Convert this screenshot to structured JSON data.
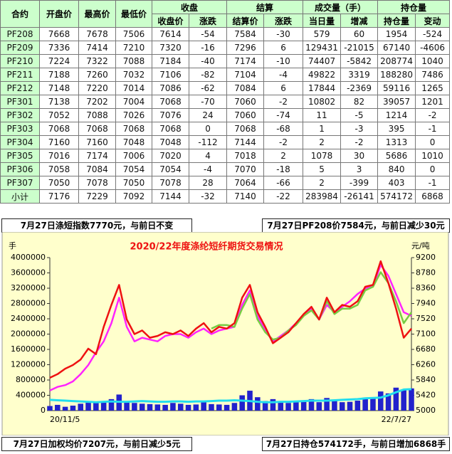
{
  "table": {
    "header": {
      "top": [
        "合约",
        "开盘价",
        "最高价",
        "最低价",
        "收盘",
        "结算",
        "成交量（手）",
        "持仓量"
      ],
      "sub": [
        "收盘价",
        "涨跌",
        "结算价",
        "涨跌",
        "当日量",
        "增减",
        "持仓量",
        "变动"
      ]
    },
    "rows": [
      [
        "PF208",
        7668,
        7678,
        7506,
        7614,
        -54,
        7584,
        -30,
        579,
        60,
        1954,
        -524
      ],
      [
        "PF209",
        7336,
        7414,
        7210,
        7320,
        -16,
        7296,
        6,
        129431,
        -21015,
        67140,
        -4606
      ],
      [
        "PF210",
        7224,
        7322,
        7088,
        7184,
        -40,
        7174,
        -10,
        74407,
        -5842,
        208774,
        1040
      ],
      [
        "PF211",
        7188,
        7260,
        7032,
        7106,
        -82,
        7104,
        -4,
        49822,
        3319,
        188280,
        7486
      ],
      [
        "PF212",
        7148,
        7220,
        7014,
        7086,
        -62,
        7084,
        6,
        17844,
        -2369,
        59116,
        1265
      ],
      [
        "PF301",
        7138,
        7202,
        7004,
        7068,
        -70,
        7060,
        -2,
        10802,
        82,
        39057,
        1201
      ],
      [
        "PF302",
        7052,
        7088,
        7026,
        7076,
        24,
        7060,
        -74,
        11,
        -5,
        1214,
        -2
      ],
      [
        "PF303",
        7068,
        7068,
        7068,
        7068,
        0,
        7068,
        -68,
        1,
        -3,
        395,
        -1
      ],
      [
        "PF304",
        7160,
        7160,
        7048,
        7048,
        -112,
        7144,
        -2,
        2,
        -2,
        1313,
        0
      ],
      [
        "PF305",
        7016,
        7174,
        7006,
        7020,
        4,
        7018,
        2,
        1078,
        30,
        5686,
        1010
      ],
      [
        "PF306",
        7058,
        7084,
        7054,
        7054,
        -4,
        7070,
        -18,
        5,
        3,
        840,
        0
      ],
      [
        "PF307",
        7050,
        7078,
        7050,
        7078,
        28,
        7064,
        -66,
        2,
        -399,
        403,
        -1
      ],
      [
        "小计",
        7176,
        7229,
        7092,
        7144,
        -32,
        7140,
        -22,
        283984,
        -26141,
        574172,
        6868
      ]
    ]
  },
  "notes": {
    "top_left": "7月27日涤短指数7770元，与前日不变",
    "top_right": "7月27日PF208价7584元，与前日减少30元",
    "bottom_left": "7月27日加权均价7207元，与前日减少5元",
    "bottom_right": "7月27日持仓574172手，与前日增加6868手"
  },
  "chart_data": {
    "type": "combo",
    "title": "2020/22年度涤纶短纤期货交易情况",
    "y_label": "手",
    "y2_label": "元/吨",
    "categories": [
      "20/11/5",
      null,
      null,
      null,
      null,
      null,
      null,
      null,
      null,
      null,
      null,
      null,
      null,
      null,
      null,
      null,
      null,
      null,
      null,
      null,
      null,
      null,
      null,
      null,
      null,
      null,
      null,
      null,
      null,
      null,
      null,
      null,
      null,
      null,
      null,
      null,
      null,
      null,
      null,
      null,
      null,
      null,
      null,
      null,
      null,
      null,
      null,
      "22/7/27"
    ],
    "ylim": [
      0,
      4000000
    ],
    "yticks": [
      0,
      400000,
      800000,
      1200000,
      1600000,
      2000000,
      2400000,
      2800000,
      3200000,
      3600000,
      4000000
    ],
    "y2lim": [
      5000,
      9200
    ],
    "y2ticks": [
      5000,
      5420,
      5840,
      6260,
      6680,
      7100,
      7520,
      7940,
      8360,
      8780,
      9200
    ],
    "series": [
      {
        "type": "bar",
        "color": "#2222cc",
        "values": [
          120000,
          150000,
          100000,
          130000,
          180000,
          250000,
          200000,
          220000,
          300000,
          420000,
          250000,
          200000,
          180000,
          170000,
          160000,
          150000,
          200000,
          180000,
          150000,
          160000,
          250000,
          170000,
          160000,
          150000,
          200000,
          400000,
          520000,
          350000,
          250000,
          300000,
          220000,
          200000,
          230000,
          260000,
          300000,
          220000,
          330000,
          250000,
          220000,
          230000,
          260000,
          300000,
          350000,
          500000,
          450000,
          600000,
          550000,
          580000
        ]
      },
      {
        "type": "line",
        "color": "#22ddee",
        "values": [
          280000,
          270000,
          260000,
          250000,
          240000,
          230000,
          220000,
          230000,
          240000,
          230000,
          230000,
          240000,
          250000,
          240000,
          230000,
          230000,
          240000,
          240000,
          230000,
          240000,
          240000,
          250000,
          260000,
          260000,
          270000,
          260000,
          250000,
          230000,
          220000,
          220000,
          230000,
          230000,
          240000,
          250000,
          260000,
          260000,
          260000,
          270000,
          280000,
          290000,
          300000,
          320000,
          330000,
          340000,
          400000,
          480000,
          550000,
          560000
        ]
      },
      {
        "type": "line",
        "axis": "y2",
        "color": "#ff22ff",
        "values": [
          5550,
          5650,
          5700,
          5800,
          6000,
          6250,
          6600,
          6900,
          7400,
          8100,
          7300,
          6900,
          7000,
          6950,
          6900,
          7050,
          7100,
          7100,
          7000,
          7150,
          7250,
          7100,
          7200,
          7250,
          7300,
          7900,
          8300,
          7600,
          7200,
          6900,
          7050,
          7200,
          7400,
          7600,
          7800,
          7500,
          7900,
          7700,
          7850,
          8000,
          8200,
          8350,
          8400,
          9000,
          8700,
          8200,
          7700,
          7600
        ]
      },
      {
        "type": "line",
        "axis": "y2",
        "color": "#77cc44",
        "values": [
          null,
          null,
          null,
          null,
          null,
          null,
          null,
          null,
          null,
          null,
          null,
          null,
          null,
          null,
          null,
          null,
          null,
          null,
          null,
          null,
          null,
          7250,
          7350,
          7350,
          7300,
          7800,
          8200,
          7500,
          7150,
          6950,
          7000,
          7200,
          7350,
          7600,
          7750,
          7500,
          8000,
          7650,
          7800,
          7800,
          7900,
          8300,
          8400,
          8800,
          8500,
          8000,
          7400,
          7700
        ]
      },
      {
        "type": "line",
        "axis": "y2",
        "color": "#ee1111",
        "values": [
          5900,
          6000,
          6150,
          6250,
          6400,
          6700,
          6550,
          7300,
          7900,
          8450,
          7500,
          7100,
          7200,
          7000,
          7050,
          7150,
          7100,
          7200,
          7050,
          7250,
          7400,
          7150,
          7300,
          7250,
          7400,
          8100,
          8450,
          7700,
          7300,
          6850,
          7000,
          7150,
          7400,
          7650,
          7850,
          7500,
          8100,
          7700,
          7900,
          7850,
          8000,
          8400,
          8450,
          9100,
          8500,
          7800,
          7000,
          7250
        ]
      }
    ]
  }
}
